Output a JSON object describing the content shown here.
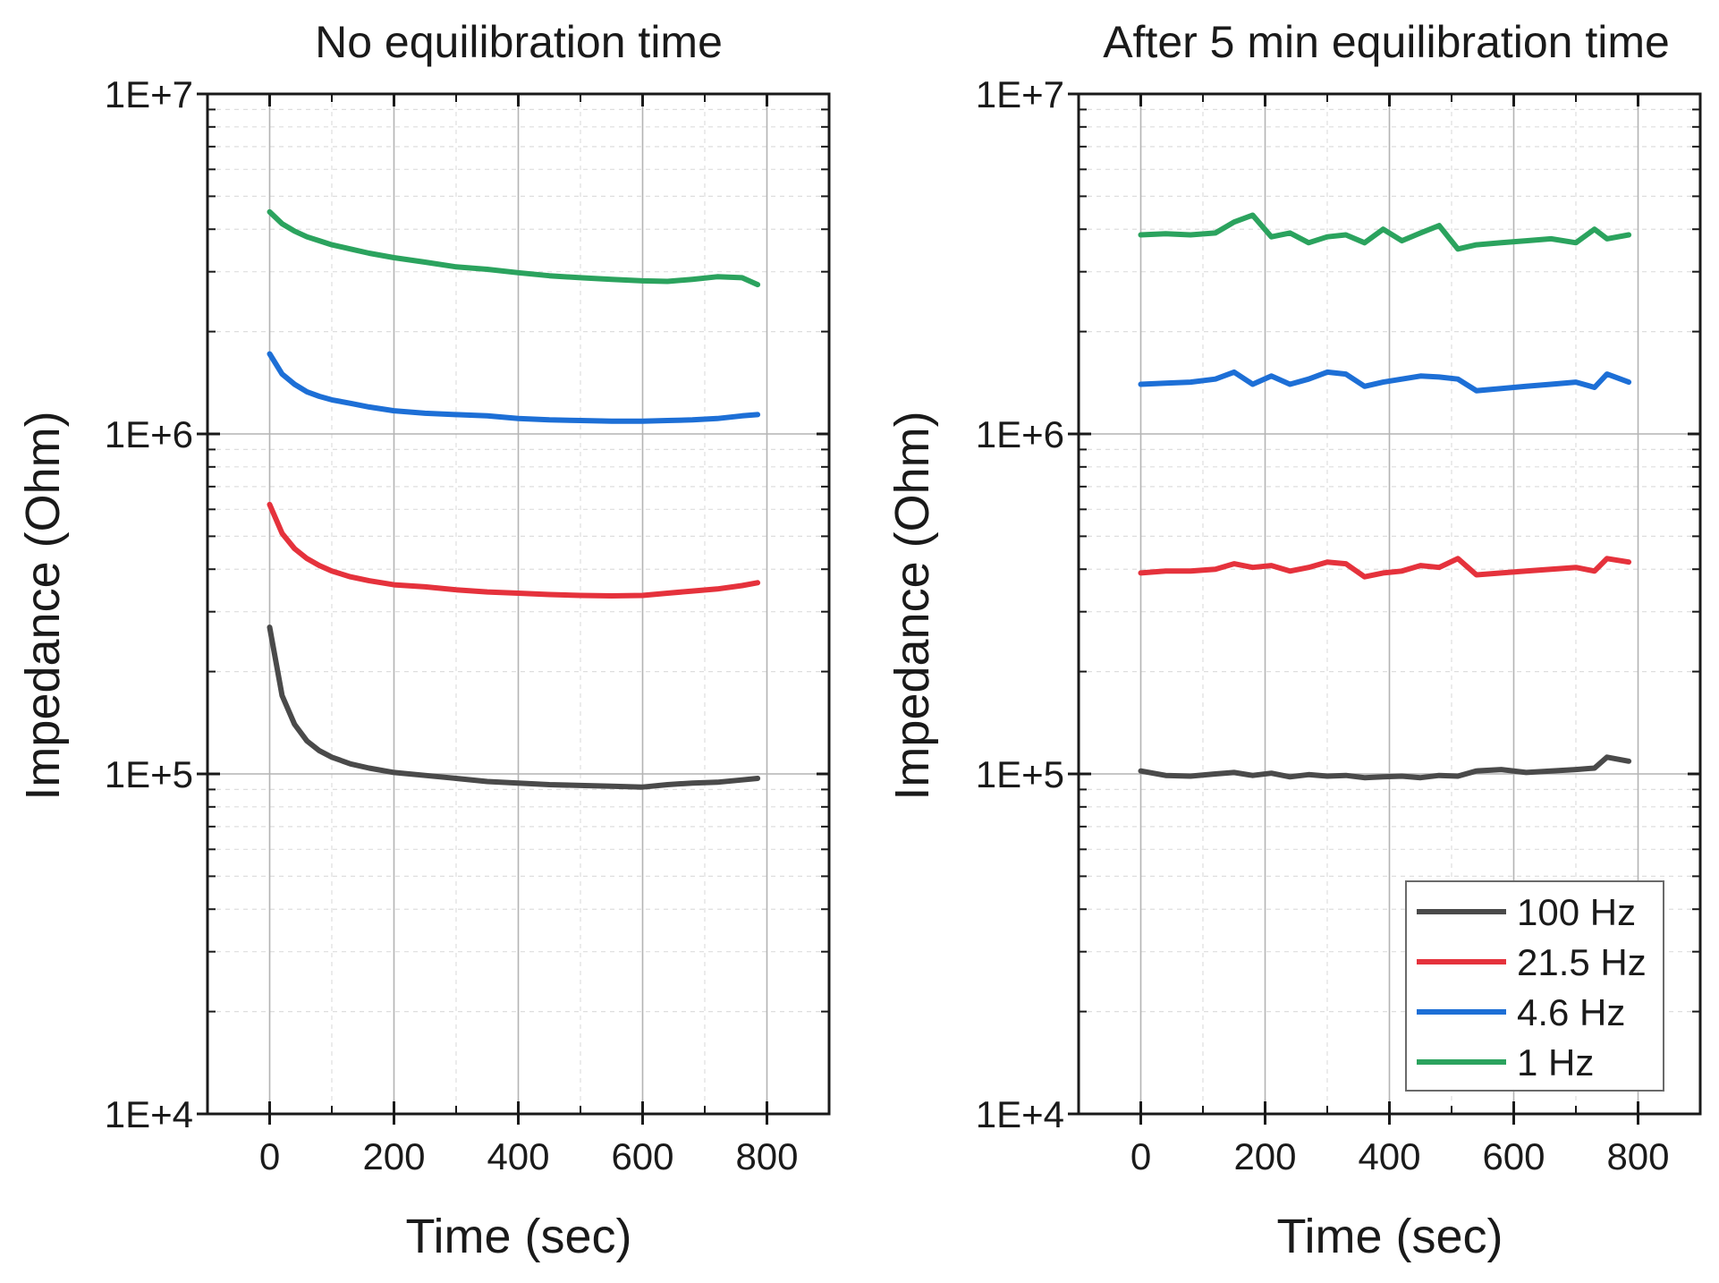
{
  "chart_data": [
    {
      "type": "line",
      "title": "No equilibration time",
      "xlabel": "Time (sec)",
      "ylabel": "Impedance (Ohm)",
      "xlim": [
        -100,
        900
      ],
      "ylim": [
        10000,
        10000000
      ],
      "yscale": "log",
      "xticks": [
        0,
        200,
        400,
        600,
        800
      ],
      "xtick_labels": [
        "0",
        "200",
        "400",
        "600",
        "800"
      ],
      "yticks": [
        10000,
        100000,
        1000000,
        10000000
      ],
      "ytick_labels": [
        "1E+4",
        "1E+5",
        "1E+6",
        "1E+7"
      ],
      "grid": true,
      "x": [
        0,
        20,
        40,
        60,
        80,
        100,
        130,
        160,
        200,
        250,
        300,
        350,
        400,
        450,
        500,
        550,
        600,
        640,
        680,
        720,
        760,
        785
      ],
      "series": [
        {
          "name": "100 Hz",
          "color": "#4a4a4a",
          "values": [
            270000,
            170000,
            140000,
            125000,
            117000,
            112000,
            107000,
            104000,
            101000,
            99000,
            97000,
            95000,
            94000,
            93000,
            92500,
            92000,
            91500,
            93000,
            94000,
            94500,
            96000,
            97000
          ]
        },
        {
          "name": "21.5 Hz",
          "color": "#e5323c",
          "values": [
            620000,
            510000,
            460000,
            430000,
            410000,
            395000,
            380000,
            370000,
            360000,
            355000,
            348000,
            343000,
            340000,
            337000,
            335000,
            334000,
            335000,
            340000,
            345000,
            350000,
            358000,
            365000
          ]
        },
        {
          "name": "4.6 Hz",
          "color": "#1d6fd6",
          "values": [
            1720000,
            1500000,
            1400000,
            1330000,
            1290000,
            1260000,
            1230000,
            1200000,
            1170000,
            1150000,
            1140000,
            1130000,
            1110000,
            1100000,
            1095000,
            1090000,
            1090000,
            1095000,
            1100000,
            1110000,
            1130000,
            1140000
          ]
        },
        {
          "name": "1 Hz",
          "color": "#2ba35e",
          "values": [
            4500000,
            4150000,
            3950000,
            3800000,
            3700000,
            3600000,
            3500000,
            3400000,
            3300000,
            3200000,
            3100000,
            3050000,
            2980000,
            2920000,
            2880000,
            2850000,
            2820000,
            2810000,
            2850000,
            2900000,
            2880000,
            2750000
          ]
        }
      ]
    },
    {
      "type": "line",
      "title": "After 5 min equilibration time",
      "xlabel": "Time (sec)",
      "ylabel": "Impedance (Ohm)",
      "xlim": [
        -100,
        900
      ],
      "ylim": [
        10000,
        10000000
      ],
      "yscale": "log",
      "xticks": [
        0,
        200,
        400,
        600,
        800
      ],
      "xtick_labels": [
        "0",
        "200",
        "400",
        "600",
        "800"
      ],
      "yticks": [
        10000,
        100000,
        1000000,
        10000000
      ],
      "ytick_labels": [
        "1E+4",
        "1E+5",
        "1E+6",
        "1E+7"
      ],
      "grid": true,
      "legend_position": "bottom-right",
      "x": [
        0,
        40,
        80,
        120,
        150,
        180,
        210,
        240,
        270,
        300,
        330,
        360,
        390,
        420,
        450,
        480,
        510,
        540,
        580,
        620,
        660,
        700,
        730,
        750,
        785
      ],
      "series": [
        {
          "name": "100 Hz",
          "color": "#4a4a4a",
          "values": [
            102000,
            99000,
            98500,
            100000,
            101000,
            99000,
            100500,
            98000,
            99500,
            98500,
            99000,
            97500,
            98000,
            98500,
            97500,
            99000,
            98500,
            102000,
            103000,
            101000,
            102000,
            103000,
            104000,
            112000,
            109000
          ]
        },
        {
          "name": "21.5 Hz",
          "color": "#e5323c",
          "values": [
            390000,
            395000,
            395000,
            400000,
            415000,
            405000,
            410000,
            395000,
            405000,
            420000,
            415000,
            380000,
            390000,
            395000,
            410000,
            405000,
            430000,
            385000,
            390000,
            395000,
            400000,
            405000,
            395000,
            430000,
            420000
          ]
        },
        {
          "name": "4.6 Hz",
          "color": "#1d6fd6",
          "values": [
            1400000,
            1410000,
            1420000,
            1450000,
            1520000,
            1400000,
            1480000,
            1400000,
            1450000,
            1520000,
            1500000,
            1380000,
            1420000,
            1450000,
            1480000,
            1470000,
            1450000,
            1340000,
            1360000,
            1380000,
            1400000,
            1420000,
            1370000,
            1500000,
            1420000
          ]
        },
        {
          "name": "1 Hz",
          "color": "#2ba35e",
          "values": [
            3850000,
            3880000,
            3850000,
            3900000,
            4200000,
            4400000,
            3800000,
            3900000,
            3650000,
            3800000,
            3850000,
            3650000,
            4000000,
            3700000,
            3900000,
            4100000,
            3500000,
            3600000,
            3650000,
            3700000,
            3750000,
            3650000,
            4000000,
            3750000,
            3850000
          ]
        }
      ]
    }
  ]
}
